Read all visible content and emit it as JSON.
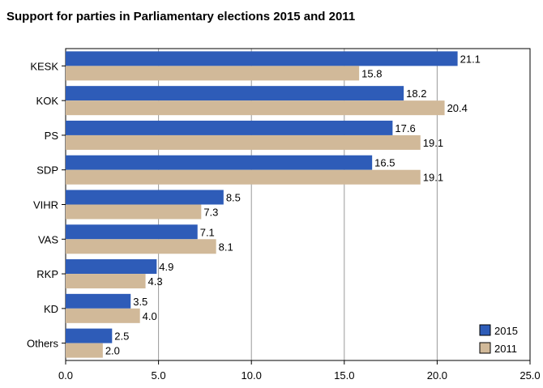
{
  "colors": {
    "s2015": "#2e5cb8",
    "s2011": "#d1b999",
    "grid": "#9a9a9a",
    "axis": "#000000"
  },
  "chart_data": {
    "type": "bar",
    "orientation": "horizontal",
    "title": "Support for parties in Parliamentary elections 2015 and 2011",
    "categories": [
      "KESK",
      "KOK",
      "PS",
      "SDP",
      "VIHR",
      "VAS",
      "RKP",
      "KD",
      "Others"
    ],
    "series": [
      {
        "name": "2015",
        "values": [
          21.1,
          18.2,
          17.6,
          16.5,
          8.5,
          7.1,
          4.9,
          3.5,
          2.5
        ],
        "labels": [
          "21.1",
          "18.2",
          "17.6",
          "16.5",
          "8.5",
          "7.1",
          "4.9",
          "3.5",
          "2.5"
        ]
      },
      {
        "name": "2011",
        "values": [
          15.8,
          20.4,
          19.1,
          19.1,
          7.3,
          8.1,
          4.3,
          4.0,
          2.0
        ],
        "labels": [
          "15.8",
          "20.4",
          "19.1",
          "19.1",
          "7.3",
          "8.1",
          "4.3",
          "4.0",
          "2.0"
        ]
      }
    ],
    "xlim": [
      0,
      25
    ],
    "xticks": [
      "0.0",
      "5.0",
      "10.0",
      "15.0",
      "20.0",
      "25.0"
    ],
    "grid": true,
    "legend_position": "bottom-right"
  }
}
